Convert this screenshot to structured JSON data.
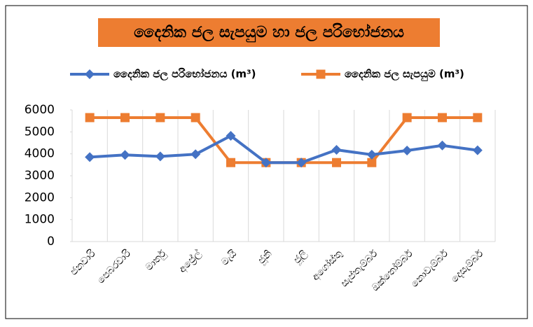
{
  "chart_data": {
    "type": "line",
    "title": "දෛනික ජල සැපයුම හා ජල පරිභෝජනය",
    "categories": [
      "ජනවාරි",
      "පෙබරවාරි",
      "මාර්තු",
      "අප්‍රේල්",
      "මැයි",
      "ජූනි",
      "ජූලි",
      "අගෝස්තු",
      "සැප්තැම්බර්",
      "ඔක්තෝම්බර්",
      "නොවැම්බර්",
      "දෙසැම්බර්"
    ],
    "series": [
      {
        "name": "දෛනික ජල පරිභෝජනය (m³)",
        "color": "#4472c4",
        "marker": "diamond",
        "values": [
          3850,
          3950,
          3880,
          3980,
          4820,
          3600,
          3600,
          4180,
          3960,
          4150,
          4380,
          4160
        ]
      },
      {
        "name": "දෛනික ජල සැපයුම (m³)",
        "color": "#ed7d31",
        "marker": "square",
        "values": [
          5650,
          5650,
          5650,
          5650,
          3600,
          3600,
          3600,
          3600,
          3600,
          5650,
          5650,
          5650
        ]
      }
    ],
    "ylim": [
      0,
      6000
    ],
    "yticks": [
      0,
      1000,
      2000,
      3000,
      4000,
      5000,
      6000
    ],
    "grid": true,
    "legend": "top"
  }
}
